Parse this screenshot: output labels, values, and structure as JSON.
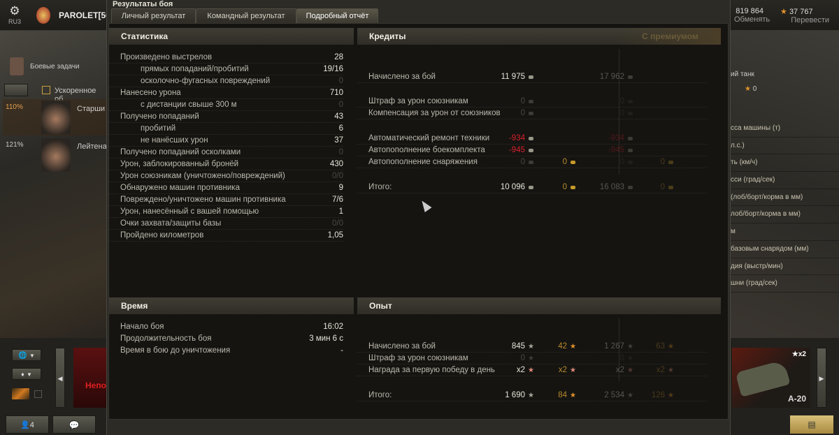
{
  "top": {
    "server": "RU3",
    "player": "PAROLET[50",
    "credits": "819 864",
    "exchange": "Обменять",
    "gold": "37 767",
    "transfer": "Перевести"
  },
  "window_title": "Результаты боя",
  "tabs": [
    {
      "label": "Личный результат"
    },
    {
      "label": "Командный результат"
    },
    {
      "label": "Подробный отчёт",
      "active": true
    }
  ],
  "left_side": {
    "quests": "Боевые задачи",
    "accelerated": "Ускоренное об",
    "crew": [
      {
        "pct": "110%",
        "name": "Старши"
      },
      {
        "pct": "121%",
        "name": "Лейтена"
      }
    ]
  },
  "right_side": {
    "label1": "ий танк",
    "xp": "0",
    "params": [
      "сса машины (т)",
      "л.с.)",
      "ть (км/ч)",
      "сси (град/сек)",
      "(лоб/борт/корма в мм)",
      "лоб/борт/корма в мм)",
      "м",
      "базовым снарядом (мм)",
      "дия (выстр/мин)",
      "шни (град/сек)"
    ]
  },
  "stats": {
    "title": "Статистика",
    "rows": [
      {
        "label": "Произведено выстрелов",
        "value": "28",
        "indent": false
      },
      {
        "label": "прямых попаданий/пробитий",
        "value": "19/16",
        "indent": true
      },
      {
        "label": "осколочно-фугасных повреждений",
        "value": "0",
        "indent": true,
        "dim": true
      },
      {
        "label": "Нанесено урона",
        "value": "710",
        "indent": false
      },
      {
        "label": "с дистанции свыше 300 м",
        "value": "0",
        "indent": true,
        "dim": true
      },
      {
        "label": "Получено попаданий",
        "value": "43",
        "indent": false
      },
      {
        "label": "пробитий",
        "value": "6",
        "indent": true
      },
      {
        "label": "не нанёсших урон",
        "value": "37",
        "indent": true
      },
      {
        "label": "Получено попаданий осколками",
        "value": "0",
        "indent": false,
        "dim": true
      },
      {
        "label": "Урон, заблокированный бронёй",
        "value": "430",
        "indent": false
      },
      {
        "label": "Урон союзникам (уничтожено/повреждений)",
        "value": "0/0",
        "indent": false,
        "dim": true
      },
      {
        "label": "Обнаружено машин противника",
        "value": "9",
        "indent": false
      },
      {
        "label": "Повреждено/уничтожено машин противника",
        "value": "7/6",
        "indent": false
      },
      {
        "label": "Урон, нанесённый с вашей помощью",
        "value": "1",
        "indent": false
      },
      {
        "label": "Очки захвата/защиты базы",
        "value": "0/0",
        "indent": false,
        "dim": true
      },
      {
        "label": "Пройдено километров",
        "value": "1,05",
        "indent": false
      }
    ]
  },
  "credits": {
    "title": "Кредиты",
    "premium_title": "С премиумом",
    "rows": [
      {
        "label": "Начислено за бой",
        "c1": "11 975",
        "g1": "",
        "c2": "17 962",
        "g2": ""
      },
      {
        "label": "Штраф за урон союзникам",
        "c1": "0",
        "g1": "",
        "c2": "0",
        "g2": ""
      },
      {
        "label": "Компенсация за урон от союзников",
        "c1": "0",
        "g1": "",
        "c2": "0",
        "g2": ""
      },
      {
        "label": "Автоматический ремонт техники",
        "c1": "-934",
        "g1": "",
        "c2": "-934",
        "g2": ""
      },
      {
        "label": "Автопополнение боекомплекта",
        "c1": "-945",
        "g1": "",
        "c2": "-945",
        "g2": ""
      },
      {
        "label": "Автопополнение снаряжения",
        "c1": "0",
        "g1": "0",
        "c2": "0",
        "g2": "0"
      },
      {
        "label": "Итого:",
        "c1": "10 096",
        "g1": "0",
        "c2": "16 083",
        "g2": "0"
      }
    ]
  },
  "time": {
    "title": "Время",
    "rows": [
      {
        "label": "Начало боя",
        "value": "16:02"
      },
      {
        "label": "Продолжительность боя",
        "value": "3 мин 6 с"
      },
      {
        "label": "Время в бою до уничтожения",
        "value": "-"
      }
    ]
  },
  "xp": {
    "title": "Опыт",
    "rows": [
      {
        "label": "Начислено за бой",
        "x1": "845",
        "f1": "42",
        "x2": "1 267",
        "f2": "63"
      },
      {
        "label": "Штраф за урон союзникам",
        "x1": "0",
        "f1": "",
        "x2": "0",
        "f2": ""
      },
      {
        "label": "Награда за первую победу в день",
        "x1": "x2",
        "f1": "x2",
        "x2": "x2",
        "f2": "x2"
      },
      {
        "label": "Итого:",
        "x1": "1 690",
        "f1": "84",
        "x2": "2 534",
        "f2": "126"
      }
    ]
  },
  "bottom": {
    "platoon_count": "4",
    "vehicle_left": "Непо",
    "vehicle_right": "A-20",
    "multiplier": "x2"
  },
  "colors": {
    "negative": "#d8202a",
    "gold": "#c69a2a",
    "free_xp": "#e2922a"
  }
}
